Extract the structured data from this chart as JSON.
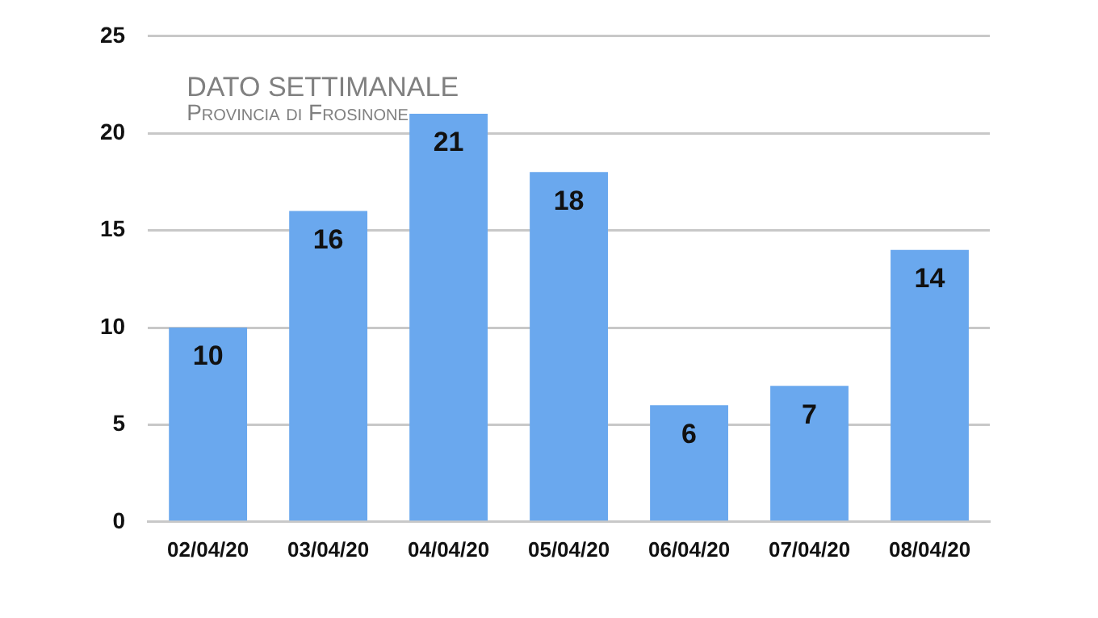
{
  "chart_data": {
    "type": "bar",
    "title": "DATO SETTIMANALE",
    "subtitle": "Provincia di Frosinone",
    "categories": [
      "02/04/20",
      "03/04/20",
      "04/04/20",
      "05/04/20",
      "06/04/20",
      "07/04/20",
      "08/04/20"
    ],
    "values": [
      10,
      16,
      21,
      18,
      6,
      7,
      14
    ],
    "color": "#6aa8ee",
    "ylim": [
      0,
      25
    ],
    "yticks": [
      0,
      5,
      10,
      15,
      20,
      25
    ],
    "grid": "y",
    "data_labels": true,
    "legend": false
  }
}
